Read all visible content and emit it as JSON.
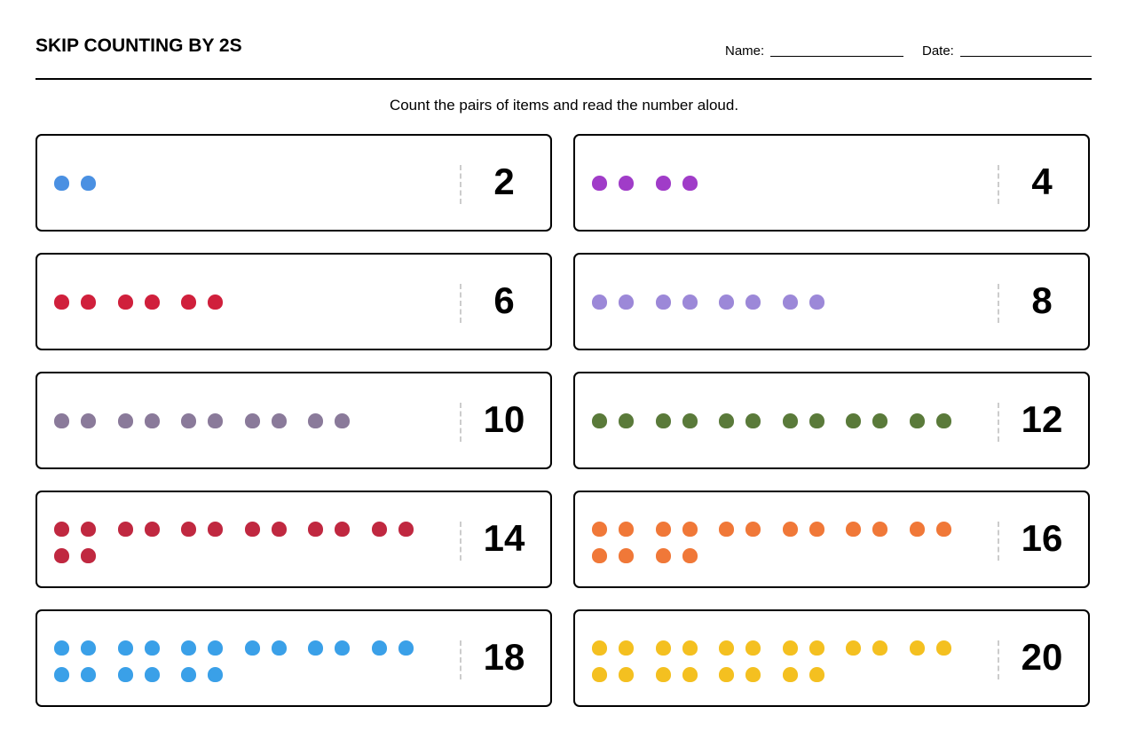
{
  "header": {
    "title": "SKIP COUNTING BY 2S",
    "name_label": "Name:",
    "date_label": "Date:"
  },
  "instruction": "Count the pairs of items and read the number aloud.",
  "cards": [
    {
      "number": 2,
      "color": "#4a90e2"
    },
    {
      "number": 4,
      "color": "#a03cc8"
    },
    {
      "number": 6,
      "color": "#d0203c"
    },
    {
      "number": 8,
      "color": "#9c88d8"
    },
    {
      "number": 10,
      "color": "#8a7a9a"
    },
    {
      "number": 12,
      "color": "#5a7a3a"
    },
    {
      "number": 14,
      "color": "#c02840"
    },
    {
      "number": 16,
      "color": "#f07838"
    },
    {
      "number": 18,
      "color": "#3aa0e8"
    },
    {
      "number": 20,
      "color": "#f4c020"
    }
  ]
}
